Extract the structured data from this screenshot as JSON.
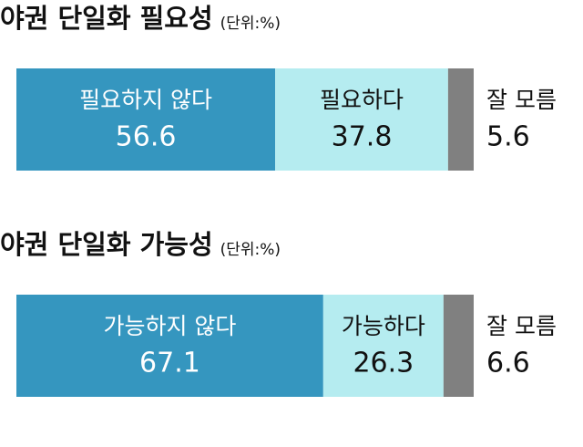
{
  "chart_data": [
    {
      "type": "bar",
      "title": "야권 단일화 필요성",
      "subtitle": "(단위:%)",
      "xlim": [
        0,
        100
      ],
      "series": [
        {
          "name": "필요하지 않다",
          "color": "#3596bf",
          "values": [
            56.6
          ]
        },
        {
          "name": "필요하다",
          "color": "#b5ecf0",
          "values": [
            37.8
          ]
        },
        {
          "name": "잘 모름",
          "color": "#808080",
          "values": [
            5.6
          ]
        }
      ]
    },
    {
      "type": "bar",
      "title": "야권 단일화 가능성",
      "subtitle": "(단위:%)",
      "xlim": [
        0,
        100
      ],
      "series": [
        {
          "name": "가능하지 않다",
          "color": "#3596bf",
          "values": [
            67.1
          ]
        },
        {
          "name": "가능하다",
          "color": "#b5ecf0",
          "values": [
            26.3
          ]
        },
        {
          "name": "잘 모름",
          "color": "#808080",
          "values": [
            6.6
          ]
        }
      ]
    }
  ]
}
